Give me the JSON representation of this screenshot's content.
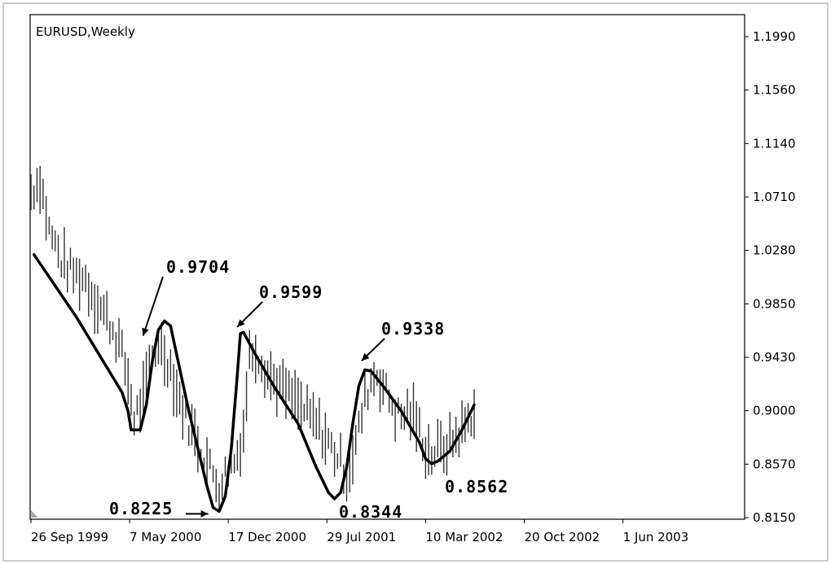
{
  "chart_data": {
    "type": "line",
    "title": "EURUSD,Weekly",
    "x_ticks": [
      "26 Sep 1999",
      "7 May 2000",
      "17 Dec 2000",
      "29 Jul 2001",
      "10 Mar 2002",
      "20 Oct 2002",
      "1 Jun 2003"
    ],
    "y_ticks": [
      "1.1990",
      "1.1560",
      "1.1140",
      "1.0710",
      "1.0280",
      "0.9850",
      "0.9430",
      "0.9000",
      "0.8570",
      "0.8150"
    ],
    "ylim": [
      0.815,
      1.199
    ],
    "xlim_weeks": [
      0,
      230
    ],
    "price_bars": {
      "start_week": 0,
      "end_week": 146,
      "anchors": [
        [
          0,
          1.075
        ],
        [
          3,
          1.085
        ],
        [
          6,
          1.045
        ],
        [
          10,
          1.02
        ],
        [
          14,
          1.01
        ],
        [
          18,
          1.005
        ],
        [
          21,
          0.99
        ],
        [
          25,
          0.975
        ],
        [
          29,
          0.955
        ],
        [
          32,
          0.925
        ],
        [
          34,
          0.895
        ],
        [
          36,
          0.905
        ],
        [
          38,
          0.92
        ],
        [
          40,
          0.945
        ],
        [
          42,
          0.955
        ],
        [
          44,
          0.945
        ],
        [
          46,
          0.935
        ],
        [
          48,
          0.915
        ],
        [
          52,
          0.89
        ],
        [
          56,
          0.87
        ],
        [
          60,
          0.85
        ],
        [
          62,
          0.84
        ],
        [
          64,
          0.85
        ],
        [
          66,
          0.855
        ],
        [
          68,
          0.865
        ],
        [
          70,
          0.885
        ],
        [
          72,
          0.945
        ],
        [
          74,
          0.95
        ],
        [
          76,
          0.94
        ],
        [
          78,
          0.93
        ],
        [
          82,
          0.92
        ],
        [
          86,
          0.91
        ],
        [
          90,
          0.9
        ],
        [
          94,
          0.89
        ],
        [
          98,
          0.875
        ],
        [
          102,
          0.86
        ],
        [
          104,
          0.85
        ],
        [
          106,
          0.865
        ],
        [
          108,
          0.885
        ],
        [
          110,
          0.91
        ],
        [
          112,
          0.925
        ],
        [
          114,
          0.93
        ],
        [
          116,
          0.92
        ],
        [
          118,
          0.91
        ],
        [
          120,
          0.9
        ],
        [
          122,
          0.895
        ],
        [
          124,
          0.9
        ],
        [
          126,
          0.895
        ],
        [
          128,
          0.885
        ],
        [
          130,
          0.87
        ],
        [
          132,
          0.865
        ],
        [
          134,
          0.87
        ],
        [
          136,
          0.87
        ],
        [
          138,
          0.875
        ],
        [
          140,
          0.88
        ],
        [
          142,
          0.885
        ],
        [
          146,
          0.9
        ]
      ]
    },
    "trend_line": [
      [
        1,
        1.025
      ],
      [
        15,
        0.975
      ],
      [
        30,
        0.915
      ],
      [
        32,
        0.9
      ],
      [
        33,
        0.885
      ],
      [
        36,
        0.885
      ],
      [
        38,
        0.905
      ],
      [
        40,
        0.94
      ],
      [
        42,
        0.965
      ],
      [
        44,
        0.972
      ],
      [
        46,
        0.968
      ],
      [
        48,
        0.945
      ],
      [
        52,
        0.9
      ],
      [
        56,
        0.86
      ],
      [
        58,
        0.84
      ],
      [
        60,
        0.823
      ],
      [
        62,
        0.82
      ],
      [
        64,
        0.832
      ],
      [
        66,
        0.87
      ],
      [
        68,
        0.93
      ],
      [
        69,
        0.962
      ],
      [
        70,
        0.963
      ],
      [
        74,
        0.945
      ],
      [
        80,
        0.92
      ],
      [
        88,
        0.89
      ],
      [
        94,
        0.855
      ],
      [
        98,
        0.835
      ],
      [
        100,
        0.83
      ],
      [
        102,
        0.835
      ],
      [
        104,
        0.855
      ],
      [
        106,
        0.89
      ],
      [
        108,
        0.92
      ],
      [
        110,
        0.933
      ],
      [
        112,
        0.932
      ],
      [
        116,
        0.92
      ],
      [
        122,
        0.9
      ],
      [
        128,
        0.875
      ],
      [
        130,
        0.862
      ],
      [
        132,
        0.858
      ],
      [
        134,
        0.86
      ],
      [
        138,
        0.868
      ],
      [
        142,
        0.885
      ],
      [
        146,
        0.905
      ]
    ],
    "annotations": [
      {
        "label": "0.9704",
        "target_week": 38,
        "target_price": 0.955
      },
      {
        "label": "0.9599",
        "target_week": 69,
        "target_price": 0.962
      },
      {
        "label": "0.9338",
        "target_week": 110,
        "target_price": 0.935
      },
      {
        "label": "0.8225",
        "target_week": 60,
        "target_price": 0.818
      },
      {
        "label": "0.8344",
        "target_week": 100,
        "target_price": 0.828
      },
      {
        "label": "0.8562",
        "target_week": 132,
        "target_price": 0.855
      }
    ]
  }
}
